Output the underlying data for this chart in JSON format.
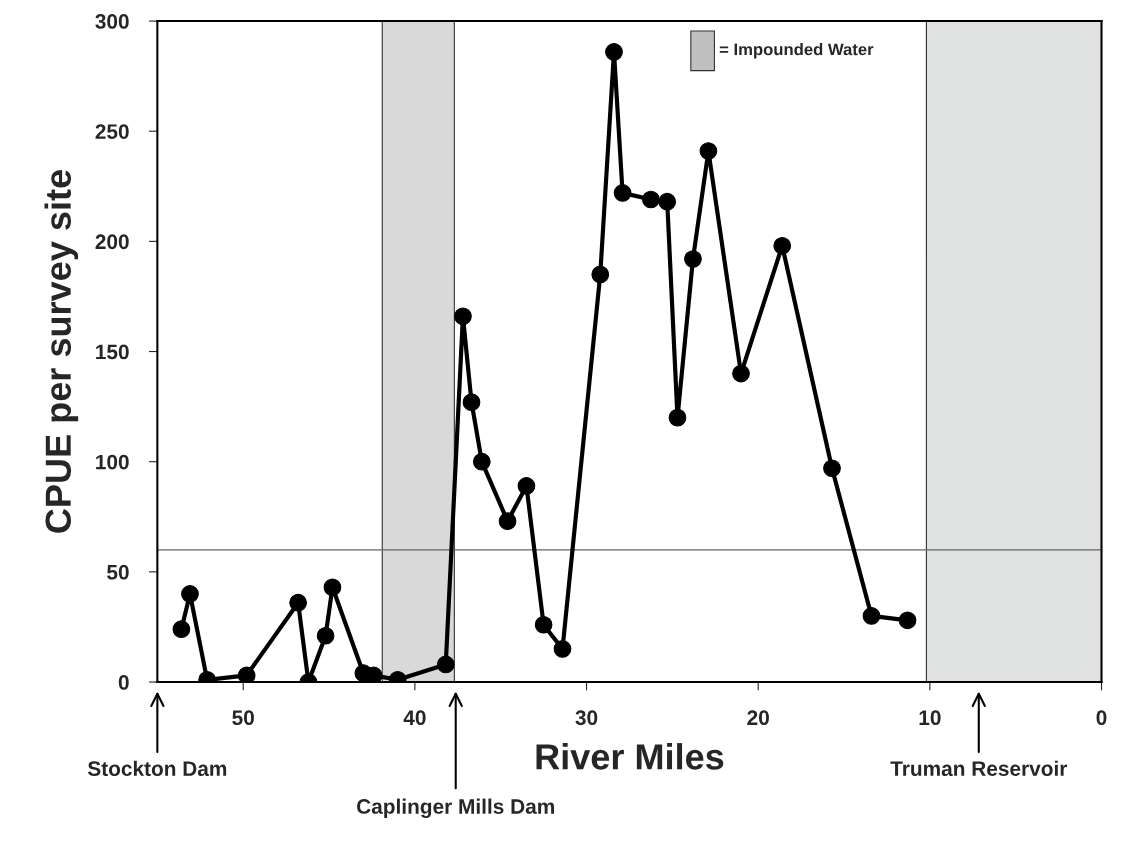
{
  "chart_data": {
    "type": "line",
    "xlabel": "River Miles",
    "ylabel": "CPUE per survey site",
    "x": [
      53.6,
      53.1,
      52.1,
      49.8,
      46.8,
      46.2,
      45.2,
      44.8,
      43.0,
      42.4,
      41.0,
      38.2,
      37.2,
      36.7,
      36.1,
      34.6,
      33.5,
      32.5,
      31.4,
      29.2,
      28.4,
      27.9,
      26.25,
      25.3,
      24.7,
      23.8,
      22.9,
      21.0,
      18.6,
      15.7,
      13.4,
      11.3
    ],
    "series": [
      {
        "color": "#000000",
        "values": [
          24,
          40,
          1,
          3,
          36,
          0,
          21,
          43,
          4,
          3,
          1,
          8,
          166,
          127,
          100,
          73,
          89,
          26,
          15,
          185,
          286,
          222,
          219,
          218,
          120,
          192,
          241,
          140,
          198,
          97,
          30,
          28
        ]
      }
    ],
    "marker": "circle",
    "line_style": "solid",
    "xlim": [
      55,
      0
    ],
    "xticks": [
      50,
      40,
      30,
      20,
      10,
      0
    ],
    "ylim": [
      0,
      300
    ],
    "yticks": [
      0,
      50,
      100,
      150,
      200,
      250,
      300
    ],
    "bands": [
      {
        "axis": "x",
        "from": 41.9,
        "to": 37.7,
        "color": "#d9d9d9"
      },
      {
        "axis": "x",
        "from": 10.2,
        "to": 0,
        "color": "#e0e1e1"
      }
    ],
    "ref_lines": [
      {
        "axis": "y",
        "value": 60,
        "color": "#666666",
        "line_style": "solid"
      }
    ],
    "annotations": [
      "Stockton Dam",
      "Caplinger Mills Dam",
      "Truman Reservoir",
      "= Impounded Water"
    ],
    "grid": false
  }
}
